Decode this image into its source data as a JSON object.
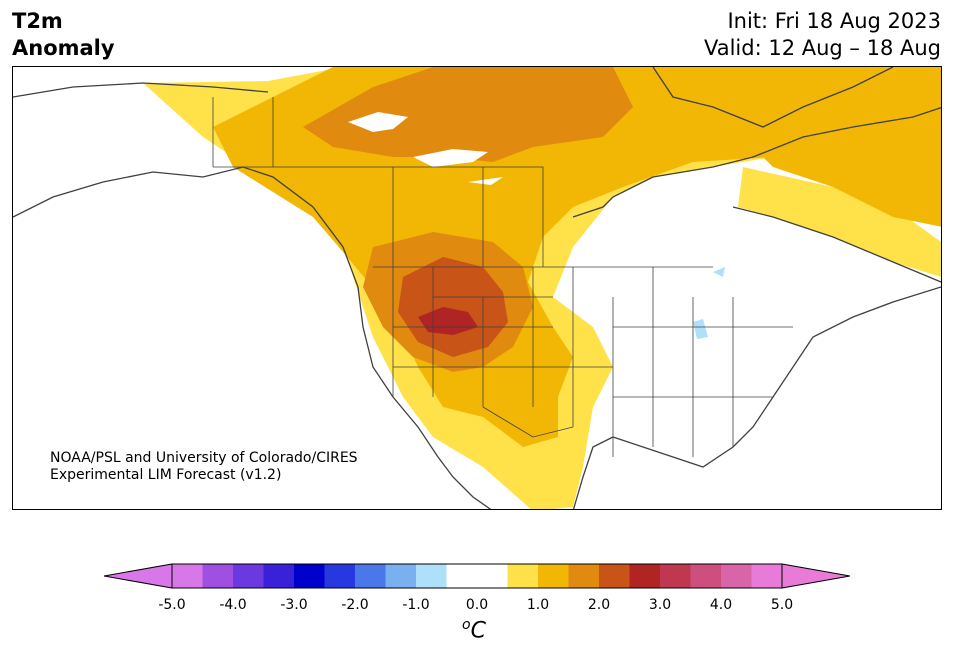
{
  "title": {
    "line1": "T2m",
    "line2": "Anomaly"
  },
  "header": {
    "init": "Init: Fri 18 Aug 2023",
    "valid": "Valid: 12 Aug – 18 Aug"
  },
  "credit": {
    "line1": "NOAA/PSL and University of Colorado/CIRES",
    "line2": "Experimental LIM Forecast (v1.2)"
  },
  "colorbar": {
    "ticks": [
      "-5.0",
      "-4.0",
      "-3.0",
      "-2.0",
      "-1.0",
      "0.0",
      "1.0",
      "2.0",
      "3.0",
      "4.0",
      "5.0"
    ],
    "unit_sup": "o",
    "unit": "C",
    "colors": [
      "#d878e8",
      "#a050e0",
      "#6a3ae0",
      "#3a20d8",
      "#0000cc",
      "#2838e0",
      "#4a78e8",
      "#78b0f0",
      "#aee0fa",
      "#ffffff",
      "#ffffff",
      "#ffe24a",
      "#f2b705",
      "#e08a10",
      "#c85418",
      "#b02424",
      "#c03850",
      "#cc4f7e",
      "#d865a8",
      "#e87ad8"
    ],
    "under_color": "#d878e8",
    "over_color": "#e87ad8"
  }
}
